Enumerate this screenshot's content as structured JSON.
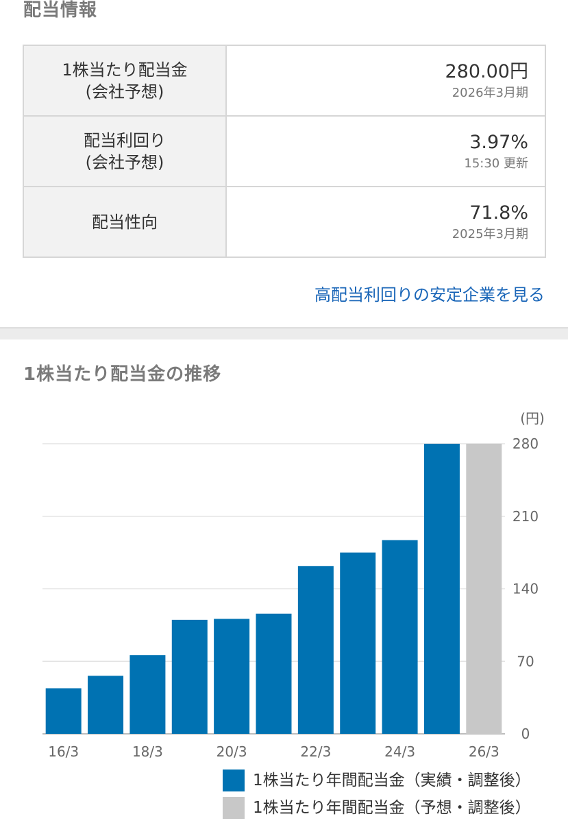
{
  "sections": {
    "info_title": "配当情報",
    "trend_title": "1株当たり配当金の推移"
  },
  "table": {
    "rows": [
      {
        "label_1": "1株当たり配当金",
        "label_2": "(会社予想)",
        "value": "280.00円",
        "sub": "2026年3月期"
      },
      {
        "label_1": "配当利回り",
        "label_2": "(会社予想)",
        "value": "3.97%",
        "sub": "15:30 更新"
      },
      {
        "label_1": "配当性向",
        "label_2": "",
        "value": "71.8%",
        "sub": "2025年3月期"
      }
    ]
  },
  "link_text": "高配当利回りの安定企業を見る",
  "chart_data": {
    "type": "bar",
    "unit_label": "(円)",
    "categories": [
      "16/3",
      "17/3",
      "18/3",
      "19/3",
      "20/3",
      "21/3",
      "22/3",
      "23/3",
      "24/3",
      "25/3",
      "26/3"
    ],
    "x_tick_labels": [
      "16/3",
      "18/3",
      "20/3",
      "22/3",
      "24/3",
      "26/3"
    ],
    "series": [
      {
        "name": "1株当たり年間配当金（実績・調整後）",
        "color": "#0072b2",
        "values": [
          44,
          56,
          76,
          110,
          111,
          116,
          162,
          175,
          187,
          280,
          null
        ]
      },
      {
        "name": "1株当たり年間配当金（予想・調整後）",
        "color": "#c8c8c8",
        "values": [
          null,
          null,
          null,
          null,
          null,
          null,
          null,
          null,
          null,
          null,
          280
        ]
      }
    ],
    "y_ticks": [
      0,
      70,
      140,
      210,
      280
    ],
    "ylim": [
      0,
      280
    ],
    "grid": true,
    "legend_position": "bottom-right"
  }
}
